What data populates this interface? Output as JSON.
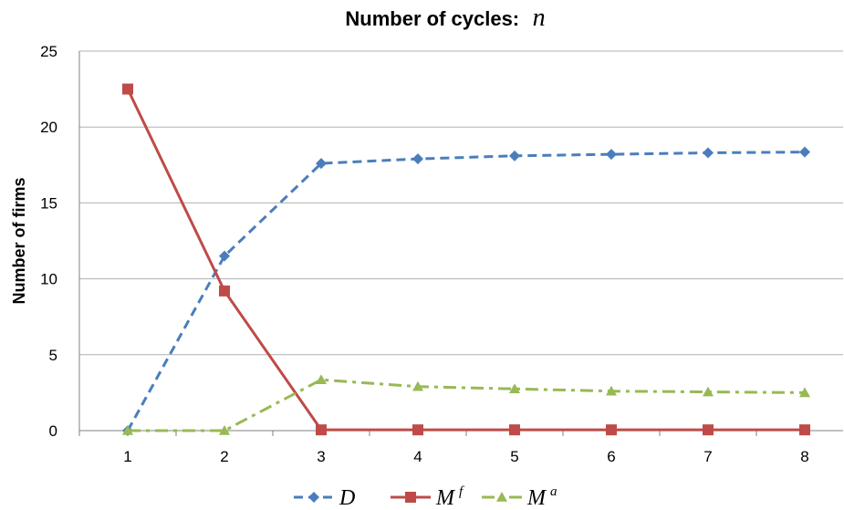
{
  "chart_data": {
    "type": "line",
    "title_prefix": "Number of cycles:",
    "title_variable": "n",
    "xlabel": "",
    "ylabel": "Number of firms",
    "categories": [
      "1",
      "2",
      "3",
      "4",
      "5",
      "6",
      "7",
      "8"
    ],
    "ylim": [
      0,
      25
    ],
    "yticks": [
      "0",
      "5",
      "10",
      "15",
      "20",
      "25"
    ],
    "grid": "horizontal",
    "legend_position": "bottom",
    "series": [
      {
        "name": "D",
        "superscript": "",
        "color": "#4a7ebb",
        "line_style": "dashed",
        "marker": "diamond",
        "values": [
          0,
          11.5,
          17.6,
          17.9,
          18.1,
          18.2,
          18.3,
          18.35
        ]
      },
      {
        "name": "M",
        "superscript": "f",
        "color": "#be4b48",
        "line_style": "solid",
        "marker": "square",
        "values": [
          22.5,
          9.2,
          0.05,
          0.05,
          0.05,
          0.05,
          0.05,
          0.05
        ]
      },
      {
        "name": "M",
        "superscript": "a",
        "color": "#98b954",
        "line_style": "dash-dot",
        "marker": "triangle",
        "values": [
          0,
          0,
          3.35,
          2.9,
          2.75,
          2.6,
          2.55,
          2.5
        ]
      }
    ]
  }
}
